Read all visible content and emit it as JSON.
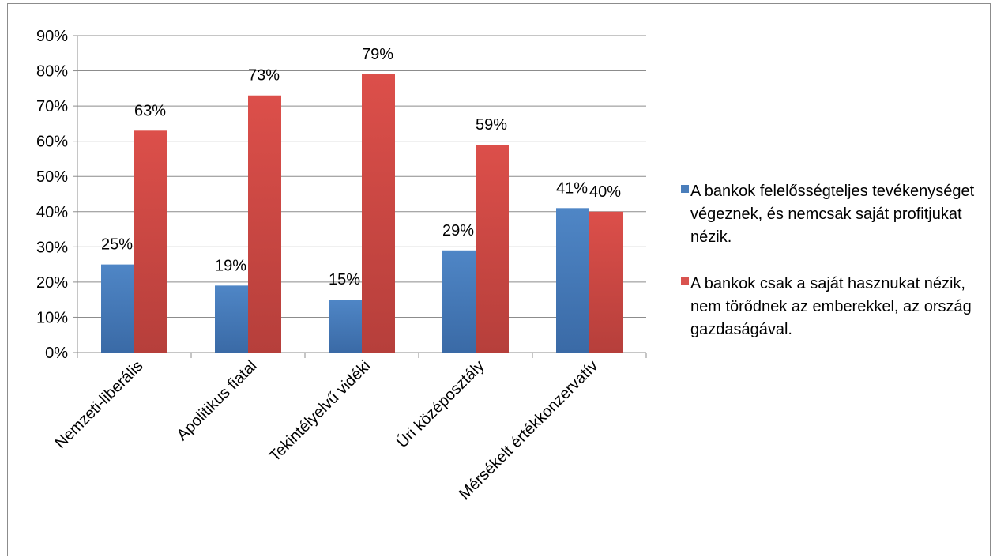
{
  "chart_data": {
    "type": "bar",
    "categories": [
      "Nemzeti-liberális",
      "Apolitikus fiatal",
      "Tekintélyelvű vidéki",
      "Úri középosztály",
      "Mérsékelt értékkonzervatív"
    ],
    "series": [
      {
        "name": "A bankok felelősségteljes tevékenységet végeznek, és nemcsak saját profitjukat nézik.",
        "values": [
          25,
          19,
          15,
          29,
          41
        ],
        "labels": [
          "25%",
          "19%",
          "15%",
          "29%",
          "41%"
        ],
        "color": "#4a7ebb",
        "color_dark": "#3a65a0"
      },
      {
        "name": "A bankok csak a saját hasznukat nézik, nem törődnek az emberekkel, az ország gazdaságával.",
        "values": [
          63,
          73,
          79,
          59,
          40
        ],
        "labels": [
          "63%",
          "73%",
          "79%",
          "59%",
          "40%"
        ],
        "color": "#d9534f",
        "color_dark": "#b13f3b"
      }
    ],
    "y_ticks": [
      "0%",
      "10%",
      "20%",
      "30%",
      "40%",
      "50%",
      "60%",
      "70%",
      "80%",
      "90%"
    ],
    "ylim": [
      0,
      90
    ],
    "grid": true,
    "legend_position": "right"
  }
}
